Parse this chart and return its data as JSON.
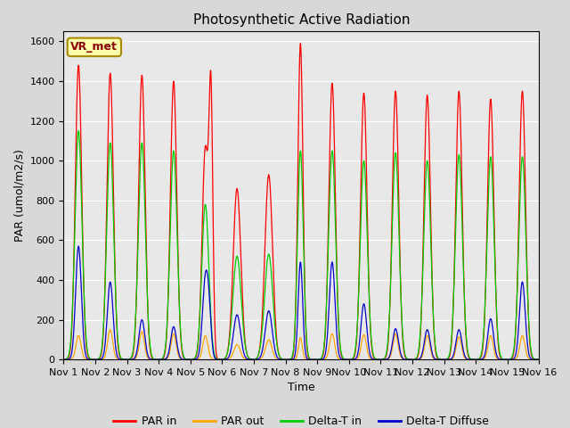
{
  "title": "Photosynthetic Active Radiation",
  "ylabel": "PAR (umol/m2/s)",
  "xlabel": "Time",
  "ylim": [
    0,
    1650
  ],
  "xlim": [
    0,
    15
  ],
  "xtick_labels": [
    "Nov 1",
    "Nov 2",
    "Nov 3",
    "Nov 4",
    "Nov 5",
    "Nov 6",
    "Nov 7",
    "Nov 8",
    "Nov 9",
    "Nov 10",
    "Nov 11",
    "Nov 12",
    "Nov 13",
    "Nov 14",
    "Nov 15",
    "Nov 16"
  ],
  "xtick_positions": [
    0,
    1,
    2,
    3,
    4,
    5,
    6,
    7,
    8,
    9,
    10,
    11,
    12,
    13,
    14,
    15
  ],
  "colors": {
    "par_in": "#ff0000",
    "par_out": "#ffa500",
    "delta_t_in": "#00cc00",
    "delta_t_diffuse": "#0000cc"
  },
  "legend_labels": [
    "PAR in",
    "PAR out",
    "Delta-T in",
    "Delta-T Diffuse"
  ],
  "label_box_text": "VR_met",
  "background_color": "#e8e8e8",
  "title_fontsize": 11,
  "axis_fontsize": 9,
  "tick_fontsize": 8,
  "day_peaks_par_in": [
    1480,
    1440,
    1430,
    1400,
    1060,
    860,
    930,
    1590,
    1390,
    1340,
    1350,
    1330,
    1350,
    1310,
    1350
  ],
  "day_peaks_par_out": [
    120,
    150,
    140,
    130,
    120,
    75,
    100,
    110,
    130,
    125,
    130,
    120,
    115,
    120,
    120
  ],
  "day_peaks_delta_in": [
    1150,
    1090,
    1090,
    1050,
    780,
    520,
    530,
    1050,
    1050,
    1000,
    1040,
    1000,
    1030,
    1020,
    1020
  ],
  "day_peaks_delta_diff": [
    570,
    390,
    200,
    165,
    395,
    225,
    245,
    490,
    490,
    280,
    155,
    150,
    150,
    205,
    390
  ],
  "peak_widths_par_in": [
    0.1,
    0.1,
    0.1,
    0.1,
    0.1,
    0.12,
    0.12,
    0.08,
    0.1,
    0.1,
    0.1,
    0.1,
    0.1,
    0.1,
    0.1
  ],
  "peak_widths_green": [
    0.11,
    0.11,
    0.11,
    0.11,
    0.11,
    0.13,
    0.13,
    0.09,
    0.11,
    0.11,
    0.11,
    0.11,
    0.11,
    0.11,
    0.11
  ],
  "peak_widths_blue": [
    0.09,
    0.09,
    0.09,
    0.09,
    0.09,
    0.11,
    0.11,
    0.07,
    0.09,
    0.09,
    0.09,
    0.09,
    0.09,
    0.09,
    0.09
  ],
  "peak_widths_orange": [
    0.08,
    0.08,
    0.08,
    0.08,
    0.08,
    0.1,
    0.1,
    0.06,
    0.08,
    0.08,
    0.08,
    0.08,
    0.08,
    0.08,
    0.08
  ],
  "day_offsets": [
    0.47,
    0.47,
    0.47,
    0.47,
    0.47,
    0.47,
    0.47,
    0.47,
    0.47,
    0.47,
    0.47,
    0.47,
    0.47,
    0.47,
    0.47
  ]
}
